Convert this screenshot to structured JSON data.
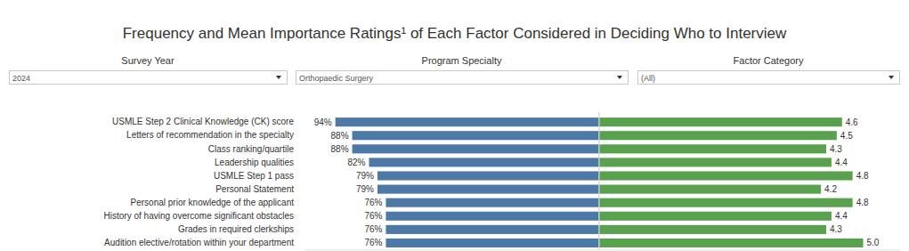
{
  "title": "Frequency and Mean Importance Ratings¹ of Each Factor Considered in Deciding Who to Interview",
  "filters": [
    {
      "label": "Survey Year",
      "value": "2024"
    },
    {
      "label": "Program Specialty",
      "value": "Orthopaedic Surgery"
    },
    {
      "label": "Factor Category",
      "value": "(All)"
    }
  ],
  "chart_data": [
    {
      "type": "bar",
      "orientation": "horizontal",
      "color": "#4e79a7",
      "data_labels": true,
      "tick_labels": "y",
      "categories": [
        "USMLE Step 2 Clinical Knowledge (CK) score",
        "Letters of recommendation in the specialty",
        "Class ranking/quartile",
        "Leadership qualities",
        "USMLE Step 1 pass",
        "Personal Statement",
        "Personal prior knowledge of the applicant",
        "History of having overcome significant obstacles",
        "Grades in required clerkships",
        "Audition elective/rotation within your department"
      ],
      "values": [
        94,
        88,
        88,
        82,
        79,
        79,
        76,
        76,
        76,
        76
      ],
      "value_labels": [
        "94%",
        "88%",
        "88%",
        "82%",
        "79%",
        "79%",
        "76%",
        "76%",
        "76%",
        "76%"
      ],
      "xlim": [
        105,
        0
      ]
    },
    {
      "type": "bar",
      "orientation": "horizontal",
      "color": "#59a14f",
      "data_labels": true,
      "tick_labels": false,
      "categories": [
        "USMLE Step 2 Clinical Knowledge (CK) score",
        "Letters of recommendation in the specialty",
        "Class ranking/quartile",
        "Leadership qualities",
        "USMLE Step 1 pass",
        "Personal Statement",
        "Personal prior knowledge of the applicant",
        "History of having overcome significant obstacles",
        "Grades in required clerkships",
        "Audition elective/rotation within your department"
      ],
      "values": [
        4.6,
        4.5,
        4.3,
        4.4,
        4.8,
        4.2,
        4.8,
        4.4,
        4.3,
        5.0
      ],
      "value_labels": [
        "4.6",
        "4.5",
        "4.3",
        "4.4",
        "4.8",
        "4.2",
        "4.8",
        "4.4",
        "4.3",
        "5.0"
      ],
      "xlim": [
        0,
        5.7
      ]
    }
  ]
}
